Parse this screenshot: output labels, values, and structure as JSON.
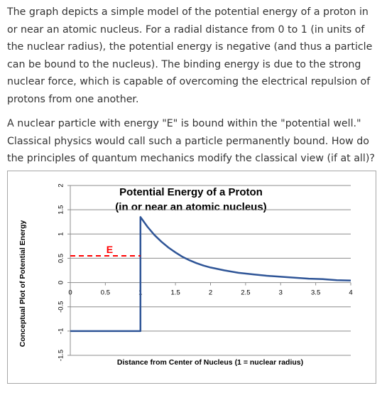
{
  "paragraphs": [
    "The graph depicts a simple model of the potential energy of a proton in or near an atomic nucleus.  For a radial distance from 0 to 1 (in units of the nuclear radius), the potential energy is negative (and thus a particle can be bound to the nucleus).  The binding energy is due to the strong nuclear force, which is capable of overcoming the electrical repulsion of protons from one another.",
    "A nuclear particle with energy \"E\" is bound within the \"potential well.\"  Classical physics would call such a particle permanently bound.  How do the principles of quantum mechanics modify the classical view (if at all)?"
  ],
  "chart_data": {
    "type": "line",
    "title": "Potential Energy of a Proton",
    "subtitle": "(in or near an atomic nucleus)",
    "xlabel": "Distance from Center of Nucleus (1 = nuclear radius)",
    "ylabel": "Conceptual Plot of Potential Energy",
    "xlim": [
      0,
      4
    ],
    "ylim": [
      -1.5,
      2
    ],
    "x_ticks": [
      "0",
      "0.5",
      "1",
      "1.5",
      "2",
      "2.5",
      "3",
      "3.5",
      "4"
    ],
    "y_ticks": [
      "-1.5",
      "-1",
      "-0.5",
      "0",
      "0.5",
      "1",
      "1.5",
      "2"
    ],
    "grid": "horizontal",
    "series": [
      {
        "color": "#2f5597",
        "x": [
          0,
          1,
          1,
          1.1,
          1.2,
          1.3,
          1.4,
          1.5,
          1.6,
          1.7,
          1.8,
          1.9,
          2.0,
          2.2,
          2.4,
          2.6,
          2.8,
          3.0,
          3.2,
          3.4,
          3.6,
          3.8,
          4.0
        ],
        "y": [
          -1,
          -1,
          1.35,
          1.15,
          0.98,
          0.84,
          0.72,
          0.62,
          0.53,
          0.46,
          0.4,
          0.35,
          0.31,
          0.25,
          0.2,
          0.17,
          0.14,
          0.12,
          0.1,
          0.08,
          0.07,
          0.05,
          0.04
        ]
      }
    ],
    "energy_level": {
      "label": "E",
      "y": 0.55,
      "x_start": 0,
      "x_end": 1,
      "color": "#ff0000",
      "style": "dashed"
    }
  }
}
